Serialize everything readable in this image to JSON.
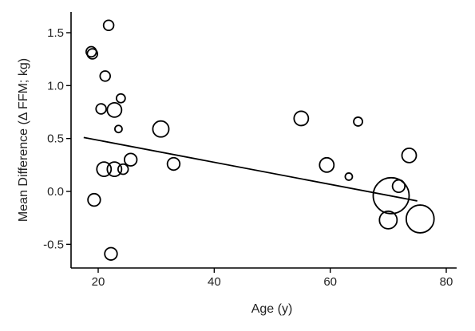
{
  "chart_data": {
    "type": "scatter",
    "title": "",
    "xlabel": "Age (y)",
    "ylabel": "Mean Difference (Δ FFM; kg)",
    "xlim": [
      15,
      82
    ],
    "ylim": [
      -0.65,
      1.65
    ],
    "x_ticks": [
      20,
      40,
      60,
      80
    ],
    "y_ticks": [
      -0.5,
      0.0,
      0.5,
      1.0,
      1.5
    ],
    "x_tick_labels": [
      "20",
      "40",
      "60",
      "80"
    ],
    "y_tick_labels": [
      "-0.5",
      "0.0",
      "0.5",
      "1.0",
      "1.5"
    ],
    "grid": false,
    "points": [
      {
        "x": 21.8,
        "y": 1.57,
        "w": 2
      },
      {
        "x": 18.8,
        "y": 1.32,
        "w": 2
      },
      {
        "x": 19.0,
        "y": 1.3,
        "w": 2
      },
      {
        "x": 21.2,
        "y": 1.09,
        "w": 2
      },
      {
        "x": 20.5,
        "y": 0.78,
        "w": 2
      },
      {
        "x": 22.8,
        "y": 0.77,
        "w": 4
      },
      {
        "x": 23.9,
        "y": 0.88,
        "w": 1.5
      },
      {
        "x": 23.5,
        "y": 0.59,
        "w": 1
      },
      {
        "x": 30.8,
        "y": 0.59,
        "w": 5
      },
      {
        "x": 25.6,
        "y": 0.3,
        "w": 3
      },
      {
        "x": 33.0,
        "y": 0.26,
        "w": 3
      },
      {
        "x": 21.0,
        "y": 0.21,
        "w": 4
      },
      {
        "x": 22.8,
        "y": 0.21,
        "w": 4
      },
      {
        "x": 24.3,
        "y": 0.21,
        "w": 2
      },
      {
        "x": 19.3,
        "y": -0.08,
        "w": 3
      },
      {
        "x": 22.2,
        "y": -0.59,
        "w": 3
      },
      {
        "x": 55.0,
        "y": 0.69,
        "w": 4
      },
      {
        "x": 59.4,
        "y": 0.25,
        "w": 4
      },
      {
        "x": 63.2,
        "y": 0.14,
        "w": 1
      },
      {
        "x": 64.8,
        "y": 0.66,
        "w": 1.5
      },
      {
        "x": 70.5,
        "y": -0.04,
        "w": 25
      },
      {
        "x": 71.8,
        "y": 0.05,
        "w": 3
      },
      {
        "x": 73.6,
        "y": 0.34,
        "w": 4
      },
      {
        "x": 70.0,
        "y": -0.27,
        "w": 6
      },
      {
        "x": 75.5,
        "y": -0.26,
        "w": 15
      }
    ],
    "trendline": {
      "x": [
        17.5,
        75.0
      ],
      "y": [
        0.51,
        -0.09
      ]
    }
  }
}
